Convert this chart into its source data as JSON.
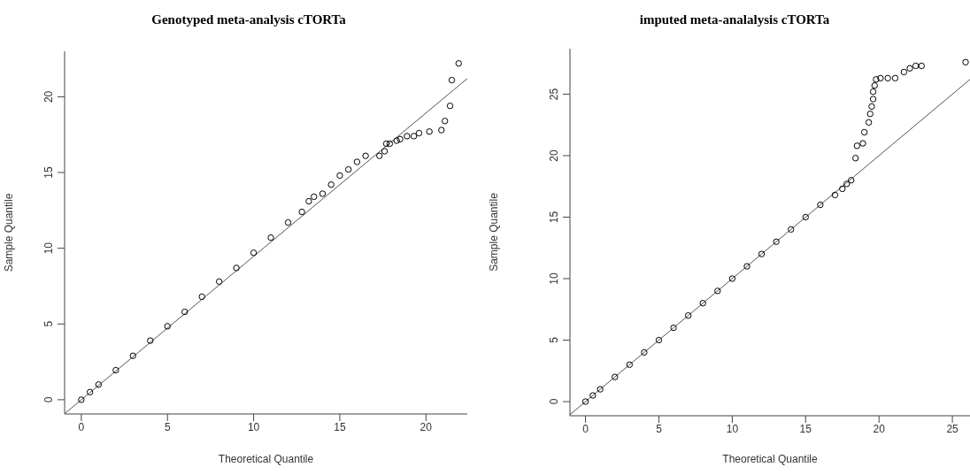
{
  "chart_data": [
    {
      "type": "scatter",
      "title": "Genotyped meta-analysis cTORTa",
      "xlabel": "Theoretical Quantile",
      "ylabel": "Sample Quantile",
      "xlim": [
        -0.97,
        22.4
      ],
      "ylim": [
        -0.94,
        23
      ],
      "xticks": [
        0,
        5,
        10,
        15,
        20
      ],
      "yticks": [
        0,
        5,
        10,
        15,
        20
      ],
      "series": [
        {
          "type": "scatter",
          "marker": "circle",
          "color": "#000000",
          "x": [
            0,
            0.5,
            1,
            2,
            3,
            4,
            5,
            6,
            7,
            8,
            9,
            10,
            11,
            12,
            12.8,
            13.2,
            13.5,
            14,
            14.5,
            15,
            15.5,
            16,
            16.5,
            17.3,
            17.6,
            17.7,
            17.9,
            18.3,
            18.5,
            18.9,
            19.3,
            19.6,
            20.2,
            20.9,
            21.1,
            21.4,
            21.5,
            21.9
          ],
          "values": [
            0,
            0.5,
            1,
            1.95,
            2.9,
            3.9,
            4.85,
            5.8,
            6.8,
            7.8,
            8.7,
            9.7,
            10.7,
            11.7,
            12.4,
            13.1,
            13.4,
            13.6,
            14.2,
            14.8,
            15.2,
            15.7,
            16.1,
            16.1,
            16.4,
            16.9,
            16.9,
            17.1,
            17.2,
            17.4,
            17.4,
            17.6,
            17.7,
            17.8,
            18.4,
            19.4,
            21.1,
            22.2
          ]
        },
        {
          "type": "line",
          "color": "#555555",
          "x": [
            -0.97,
            22.4
          ],
          "values": [
            -0.92,
            21.2
          ]
        }
      ]
    },
    {
      "type": "scatter",
      "title": "imputed meta-analalysis cTORTa",
      "xlabel": "Theoretical Quantile",
      "ylabel": "Sample Quantile",
      "xlim": [
        -1.06,
        26.2
      ],
      "ylim": [
        -1.15,
        28.7
      ],
      "xticks": [
        0,
        5,
        10,
        15,
        20,
        25
      ],
      "yticks": [
        0,
        5,
        10,
        15,
        20,
        25
      ],
      "series": [
        {
          "type": "scatter",
          "marker": "circle",
          "color": "#000000",
          "x": [
            0,
            0.5,
            1,
            2,
            3,
            4,
            5,
            6,
            7,
            8,
            9,
            10,
            11,
            12,
            13,
            14,
            15,
            16,
            17,
            17.5,
            17.8,
            18.1,
            18.4,
            18.5,
            18.9,
            19,
            19.3,
            19.4,
            19.5,
            19.6,
            19.6,
            19.7,
            19.8,
            20.1,
            20.6,
            21.1,
            21.7,
            22.1,
            22.5,
            22.9,
            25.9
          ],
          "values": [
            0,
            0.5,
            1,
            2,
            3,
            4,
            5,
            6,
            7,
            8,
            9,
            10,
            11,
            12,
            13,
            14,
            15,
            16,
            16.8,
            17.3,
            17.7,
            18,
            19.8,
            20.8,
            21,
            21.9,
            22.7,
            23.4,
            24,
            24.6,
            25.2,
            25.7,
            26.2,
            26.3,
            26.3,
            26.3,
            26.8,
            27.1,
            27.3,
            27.3,
            27.6
          ]
        },
        {
          "type": "line",
          "color": "#555555",
          "x": [
            -1.06,
            26.2
          ],
          "values": [
            -1.06,
            26.2
          ]
        }
      ]
    }
  ]
}
